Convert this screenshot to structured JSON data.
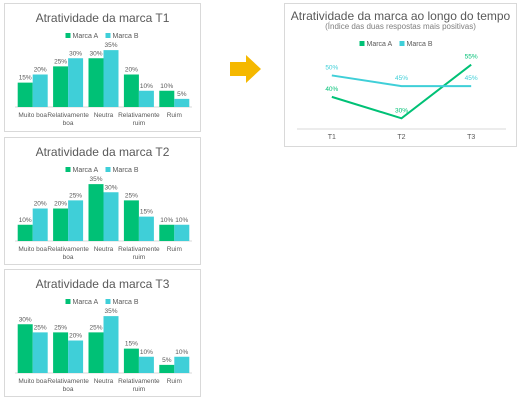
{
  "colors": {
    "marca_a": "#00c176",
    "marca_b": "#3fcfd8",
    "arrow": "#f5b800",
    "text": "#595959",
    "axis": "#d9d9d9"
  },
  "arrow_icon": "right-arrow-icon",
  "chart_data": [
    {
      "type": "bar",
      "title": "Atratividade da marca T1",
      "categories": [
        "Muito boa",
        "Relativamente boa",
        "Neutra",
        "Relativamente ruim",
        "Ruim"
      ],
      "series": [
        {
          "name": "Marca A",
          "values": [
            15,
            25,
            30,
            20,
            10
          ],
          "labels": [
            "15%",
            "25%",
            "30%",
            "20%",
            "10%"
          ]
        },
        {
          "name": "Marca B",
          "values": [
            20,
            30,
            35,
            10,
            5
          ],
          "labels": [
            "20%",
            "30%",
            "35%",
            "10%",
            "5%"
          ]
        }
      ],
      "ylim": [
        0,
        40
      ],
      "legend": "top"
    },
    {
      "type": "bar",
      "title": "Atratividade da marca T2",
      "categories": [
        "Muito boa",
        "Relativamente boa",
        "Neutra",
        "Relativamente ruim",
        "Ruim"
      ],
      "series": [
        {
          "name": "Marca A",
          "values": [
            10,
            20,
            35,
            25,
            10
          ],
          "labels": [
            "10%",
            "20%",
            "35%",
            "25%",
            "10%"
          ]
        },
        {
          "name": "Marca B",
          "values": [
            20,
            25,
            30,
            15,
            10
          ],
          "labels": [
            "20%",
            "25%",
            "30%",
            "15%",
            "10%"
          ]
        }
      ],
      "ylim": [
        0,
        40
      ],
      "legend": "top"
    },
    {
      "type": "bar",
      "title": "Atratividade da marca T3",
      "categories": [
        "Muito boa",
        "Relativamente boa",
        "Neutra",
        "Relativamente ruim",
        "Ruim"
      ],
      "series": [
        {
          "name": "Marca A",
          "values": [
            30,
            25,
            25,
            15,
            5
          ],
          "labels": [
            "30%",
            "25%",
            "25%",
            "15%",
            "5%"
          ]
        },
        {
          "name": "Marca B",
          "values": [
            25,
            20,
            35,
            10,
            10
          ],
          "labels": [
            "25%",
            "20%",
            "35%",
            "10%",
            "10%"
          ]
        }
      ],
      "ylim": [
        0,
        40
      ],
      "legend": "top"
    },
    {
      "type": "line",
      "title": "Atratividade da marca ao longo do tempo",
      "subtitle": "(Índice das duas respostas mais positivas)",
      "categories": [
        "T1",
        "T2",
        "T3"
      ],
      "series": [
        {
          "name": "Marca A",
          "values": [
            40,
            30,
            55
          ],
          "labels": [
            "40%",
            "30%",
            "55%"
          ]
        },
        {
          "name": "Marca B",
          "values": [
            50,
            45,
            45
          ],
          "labels": [
            "50%",
            "45%",
            "45%"
          ]
        }
      ],
      "ylim": [
        25,
        60
      ],
      "legend": "top"
    }
  ]
}
